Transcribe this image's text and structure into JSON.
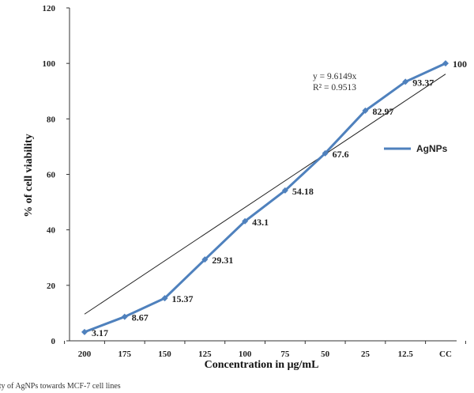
{
  "chart_data": {
    "type": "line",
    "xlabel": "Concentration in μg/mL",
    "ylabel": "% of cell viability",
    "categories": [
      "200",
      "175",
      "150",
      "125",
      "100",
      "75",
      "50",
      "25",
      "12.5",
      "CC"
    ],
    "ylim": [
      0,
      120
    ],
    "yticks": [
      "0",
      "20",
      "40",
      "60",
      "80",
      "100",
      "120"
    ],
    "series": [
      {
        "name": "AgNPs",
        "values": [
          3.17,
          8.67,
          15.37,
          29.31,
          43.1,
          54.18,
          67.6,
          82.97,
          93.37,
          100
        ],
        "labels": [
          "3.17",
          "8.67",
          "15.37",
          "29.31",
          "43.1",
          "54.18",
          "67.6",
          "82.97",
          "93.37",
          "100"
        ],
        "color": "#4f81bd"
      }
    ],
    "trendline": {
      "type": "linear",
      "slope": 9.6149,
      "intercept": 0,
      "color": "#222222"
    },
    "annotations": {
      "equation": "y = 9.6149x",
      "r_squared": "R² = 0.9513"
    },
    "legend": {
      "position": "right",
      "label": "AgNPs"
    },
    "grid": false
  },
  "caption": "ity of AgNPs towards MCF-7 cell lines"
}
